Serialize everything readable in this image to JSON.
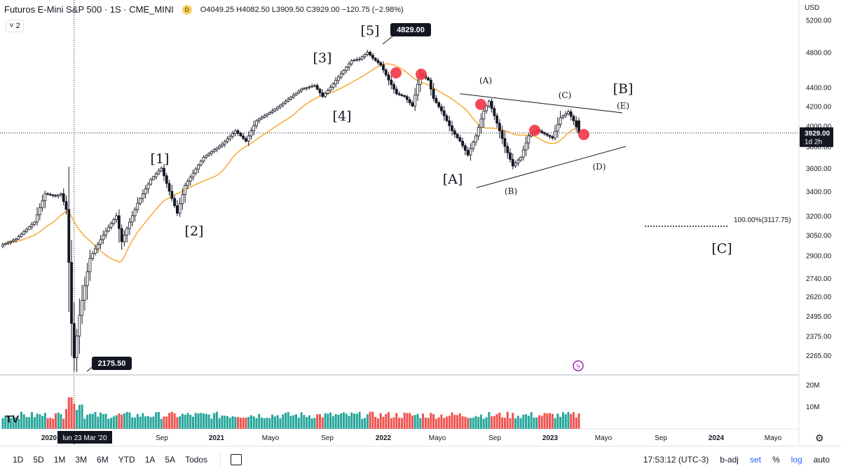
{
  "header": {
    "title": "Futuros E-Mini S&P 500 · 1S · CME_MINI",
    "badge": "D",
    "ohlc": "O4049.25 H4082.50 L3909.50 C3929.00 −120.75 (−2.98%)",
    "collapse_count": "2"
  },
  "price_axis": {
    "currency": "USD",
    "ticks": [
      "5200.00",
      "4800.00",
      "4400.00",
      "4200.00",
      "4000.00",
      "3800.00",
      "3600.00",
      "3400.00",
      "3200.00",
      "3050.00",
      "2900.00",
      "2740.00",
      "2620.00",
      "2495.00",
      "2375.00",
      "2265.00"
    ],
    "current_price": "3929.00",
    "current_countdown": "1d 2h"
  },
  "volume_axis": {
    "ticks": [
      "20M",
      "10M"
    ]
  },
  "time_axis": {
    "ticks": [
      "2020",
      "Sep",
      "2021",
      "Mayo",
      "Sep",
      "2022",
      "Mayo",
      "Sep",
      "2023",
      "Mayo",
      "Sep",
      "2024",
      "Mayo"
    ],
    "crosshair_label": "lun 23 Mar '20"
  },
  "annotations": {
    "high_label": "4829.00",
    "low_label": "2175.50",
    "fib_label": "100.00%(3117.75)",
    "waves": [
      "[1]",
      "[2]",
      "[3]",
      "[4]",
      "[5]",
      "[A]",
      "[B]",
      "[C]",
      "(A)",
      "(B)",
      "(C)",
      "(D)",
      "(E)"
    ]
  },
  "bottom_bar": {
    "timeframes": [
      "1D",
      "5D",
      "1M",
      "3M",
      "6M",
      "YTD",
      "1A",
      "5A",
      "Todos"
    ],
    "clock": "17:53:12 (UTC-3)",
    "options": [
      "b-adj",
      "set",
      "%",
      "log",
      "auto"
    ]
  },
  "colors": {
    "up": "#26a69a",
    "down": "#ef5350",
    "ma": "#f7a833",
    "candle": "#131722",
    "accent": "#2962ff",
    "marker": "#f23645"
  },
  "chart_data": {
    "type": "candlestick",
    "symbol": "ES1!",
    "interval": "1W",
    "scale": "log",
    "ylim": [
      2175.5,
      5200
    ],
    "series_ma_approx": [
      3050,
      3100,
      3020,
      2990,
      3050,
      3120,
      3300,
      3550,
      3800,
      4050,
      4250,
      4400,
      4470,
      4430,
      4300,
      4150,
      4000,
      3950,
      3935
    ],
    "key_points": [
      {
        "label": "low",
        "date": "2020-03-23",
        "value": 2175.5
      },
      {
        "label": "[5] high",
        "date": "2022-01",
        "value": 4829.0
      },
      {
        "label": "close",
        "date": "2023-03",
        "value": 3929.0
      },
      {
        "label": "fib 100%",
        "value": 3117.75
      }
    ]
  }
}
